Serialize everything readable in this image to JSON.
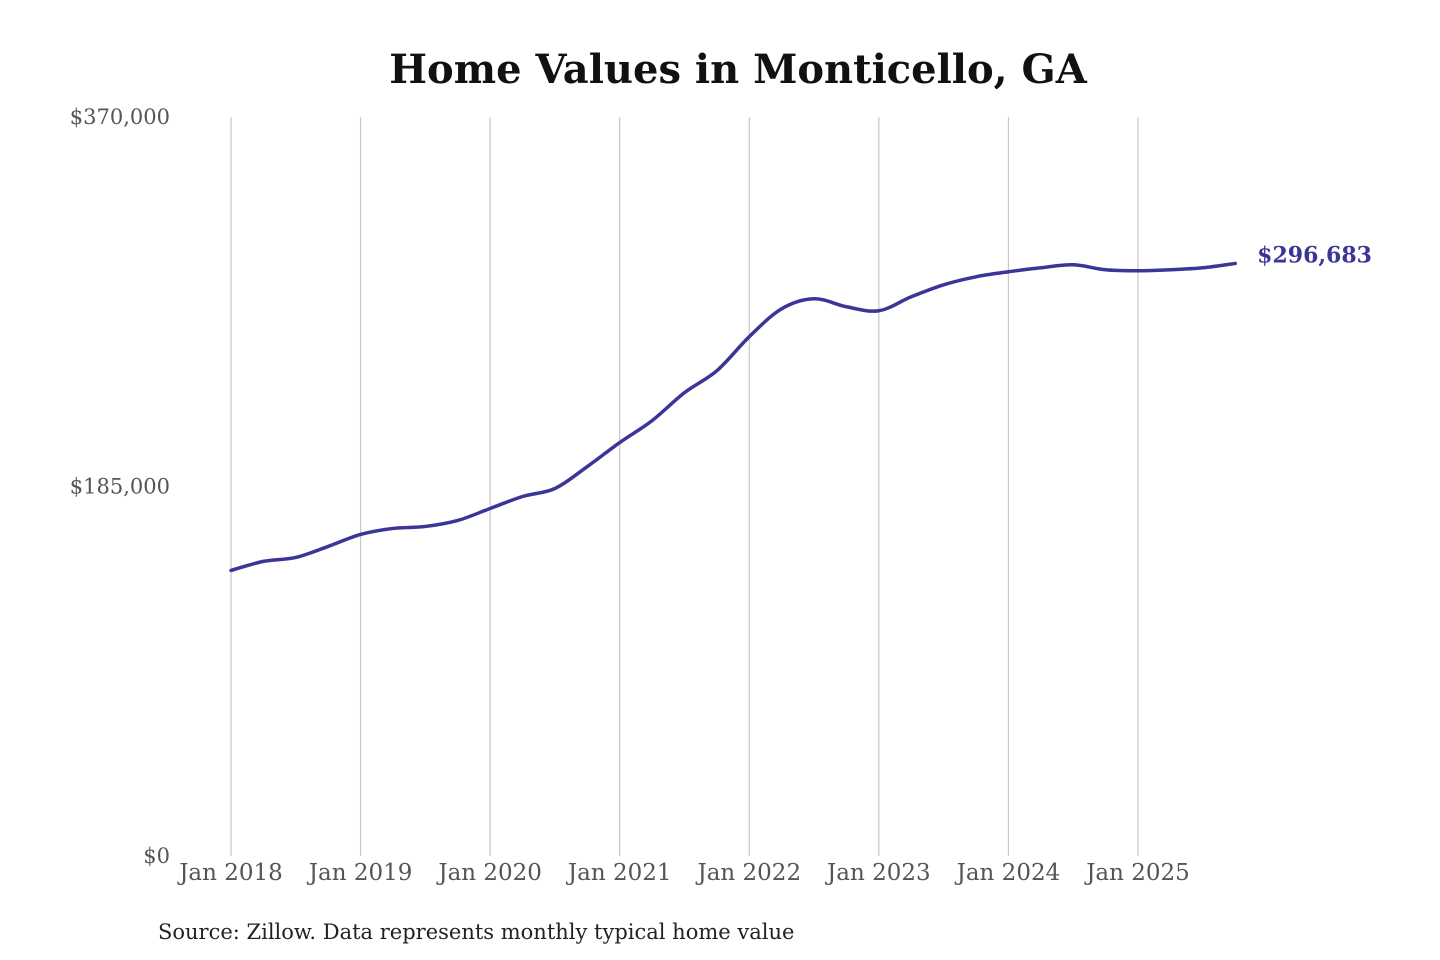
{
  "chart_data": {
    "type": "line",
    "title": "Home Values in Monticello, GA",
    "source": "Source: Zillow. Data represents monthly typical home value",
    "ylim": [
      0,
      370000
    ],
    "yticks": [
      {
        "value": 370000,
        "label": "$370,000"
      },
      {
        "value": 185000,
        "label": "$185,000"
      },
      {
        "value": 0,
        "label": "$0"
      }
    ],
    "xlim": [
      "2018-01",
      "2025-10"
    ],
    "xticks": [
      {
        "value": "2018-01",
        "label": "Jan 2018"
      },
      {
        "value": "2019-01",
        "label": "Jan 2019"
      },
      {
        "value": "2020-01",
        "label": "Jan 2020"
      },
      {
        "value": "2021-01",
        "label": "Jan 2021"
      },
      {
        "value": "2022-01",
        "label": "Jan 2022"
      },
      {
        "value": "2023-01",
        "label": "Jan 2023"
      },
      {
        "value": "2024-01",
        "label": "Jan 2024"
      },
      {
        "value": "2025-01",
        "label": "Jan 2025"
      }
    ],
    "grid": "vertical",
    "series": [
      {
        "color": "#3b3597",
        "end_label": "$296,683",
        "points": [
          {
            "x": "2018-01",
            "y": 143000
          },
          {
            "x": "2018-04",
            "y": 147500
          },
          {
            "x": "2018-07",
            "y": 149500
          },
          {
            "x": "2018-10",
            "y": 155000
          },
          {
            "x": "2019-01",
            "y": 161000
          },
          {
            "x": "2019-04",
            "y": 164000
          },
          {
            "x": "2019-07",
            "y": 165000
          },
          {
            "x": "2019-10",
            "y": 168000
          },
          {
            "x": "2020-01",
            "y": 174000
          },
          {
            "x": "2020-04",
            "y": 180000
          },
          {
            "x": "2020-07",
            "y": 184000
          },
          {
            "x": "2020-10",
            "y": 195000
          },
          {
            "x": "2021-01",
            "y": 207000
          },
          {
            "x": "2021-04",
            "y": 218000
          },
          {
            "x": "2021-07",
            "y": 232000
          },
          {
            "x": "2021-10",
            "y": 243000
          },
          {
            "x": "2022-01",
            "y": 260000
          },
          {
            "x": "2022-04",
            "y": 274000
          },
          {
            "x": "2022-07",
            "y": 279000
          },
          {
            "x": "2022-10",
            "y": 275000
          },
          {
            "x": "2023-01",
            "y": 273000
          },
          {
            "x": "2023-04",
            "y": 280000
          },
          {
            "x": "2023-07",
            "y": 286000
          },
          {
            "x": "2023-10",
            "y": 290000
          },
          {
            "x": "2024-01",
            "y": 292500
          },
          {
            "x": "2024-04",
            "y": 294500
          },
          {
            "x": "2024-07",
            "y": 296000
          },
          {
            "x": "2024-10",
            "y": 293500
          },
          {
            "x": "2025-01",
            "y": 293000
          },
          {
            "x": "2025-04",
            "y": 293500
          },
          {
            "x": "2025-07",
            "y": 294500
          },
          {
            "x": "2025-10",
            "y": 296683
          }
        ]
      }
    ]
  }
}
